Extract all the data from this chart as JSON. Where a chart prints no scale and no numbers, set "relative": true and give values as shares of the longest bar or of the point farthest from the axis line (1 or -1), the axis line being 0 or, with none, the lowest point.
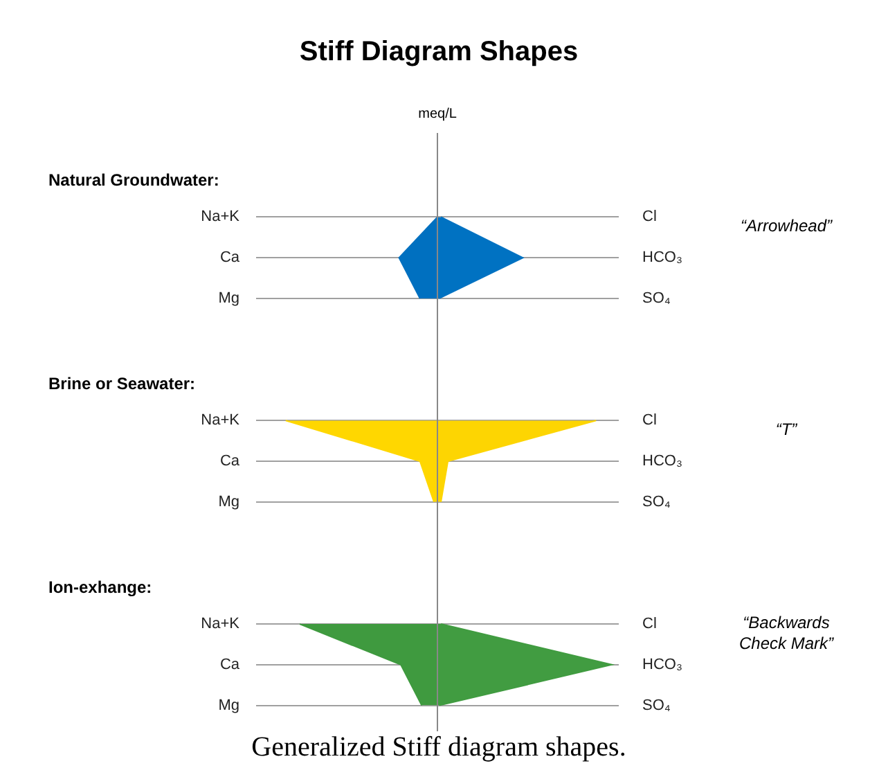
{
  "chart_data": {
    "type": "area",
    "orientation": "horizontal",
    "relative": true,
    "title": "Stiff Diagram Shapes",
    "categories": [
      "Na+K",
      "Ca",
      "Mg",
      null,
      null,
      "Na+K",
      "Ca",
      "Mg",
      null,
      null,
      "Na+K",
      "Ca",
      "Mg"
    ],
    "y2_categories": [
      "Cl",
      "HCO₃",
      "SO₄",
      null,
      null,
      "Cl",
      "HCO₃",
      "SO₄",
      null,
      null,
      "Cl",
      "HCO₃",
      "SO₄"
    ],
    "series": [
      {
        "color": "#0070c0",
        "values": [
          0,
          -0.22,
          -0.1,
          null,
          null,
          null,
          null,
          null,
          null,
          null,
          null,
          null,
          null
        ]
      },
      {
        "color": "#0072c2",
        "values": [
          0.02,
          0.49,
          0.01,
          null,
          null,
          null,
          null,
          null,
          null,
          null,
          null,
          null,
          null
        ]
      },
      {
        "color": "#ffd700",
        "values": [
          null,
          null,
          null,
          null,
          null,
          -0.87,
          -0.1,
          -0.02,
          null,
          null,
          null,
          null,
          null
        ]
      },
      {
        "color": "#fdd502",
        "values": [
          null,
          null,
          null,
          null,
          null,
          0.91,
          0.06,
          0.02,
          null,
          null,
          null,
          null,
          null
        ]
      },
      {
        "color": "#3f9a3f",
        "values": [
          null,
          null,
          null,
          null,
          null,
          null,
          null,
          null,
          null,
          null,
          -0.79,
          -0.21,
          -0.09
        ]
      },
      {
        "color": "#419c41",
        "values": [
          null,
          null,
          null,
          null,
          null,
          null,
          null,
          null,
          null,
          null,
          0.02,
          1,
          0.01
        ]
      }
    ],
    "annotations": [
      "Natural Groundwater:",
      "Brine or Seawater:",
      "Ion-exhange:",
      "“Arrowhead”",
      "“T”",
      "“Backwards Check Mark”",
      "Generalized Stiff diagram shapes.",
      "meq/L"
    ],
    "grid": "y",
    "legend": false
  }
}
